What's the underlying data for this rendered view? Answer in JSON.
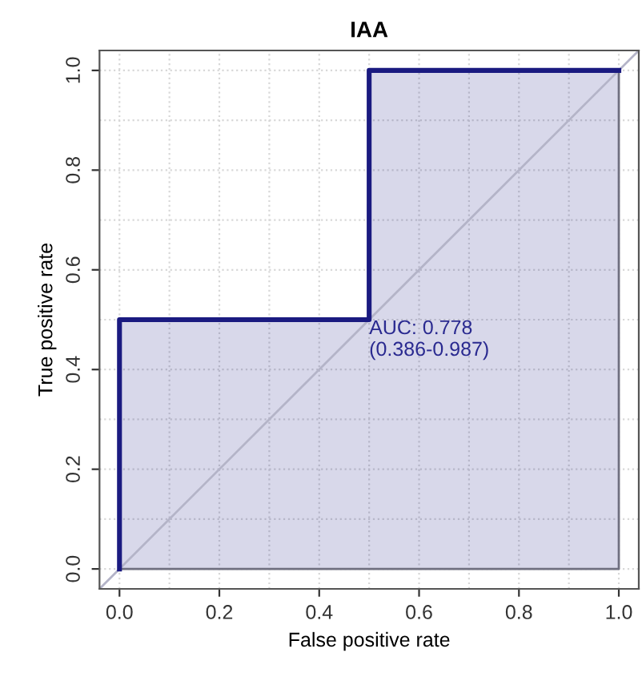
{
  "chart_data": {
    "type": "area",
    "title": "IAA",
    "xlabel": "False positive rate",
    "ylabel": "True positive rate",
    "series": [
      {
        "color": "#1a1a80",
        "x": [
          0,
          0,
          0.5,
          0.5,
          1
        ],
        "values": [
          0,
          0.5,
          0.5,
          1,
          1
        ]
      },
      {
        "type": "line",
        "color": "#b4b4c8",
        "x": [
          -0.04,
          1.04
        ],
        "values": [
          -0.04,
          1.04
        ]
      }
    ],
    "annotations": [
      {
        "text": "AUC: 0.778\n(0.386-0.987)",
        "x": 0.5,
        "y": 0.5
      }
    ],
    "xlim": [
      -0.04,
      1.04
    ],
    "ylim": [
      -0.04,
      1.04
    ],
    "xticks": [
      {
        "value": 0,
        "label": "0.0"
      },
      {
        "value": 0.1,
        "label": null
      },
      0.2,
      {
        "value": 0.3,
        "label": null
      },
      0.4,
      {
        "value": 0.5,
        "label": null
      },
      0.6,
      {
        "value": 0.7,
        "label": null
      },
      0.8,
      {
        "value": 0.9,
        "label": null
      },
      {
        "value": 1,
        "label": "1.0"
      }
    ],
    "yticks": [
      {
        "value": 0,
        "label": "0.0"
      },
      {
        "value": 0.1,
        "label": null
      },
      0.2,
      {
        "value": 0.3,
        "label": null
      },
      0.4,
      {
        "value": 0.5,
        "label": null
      },
      0.6,
      {
        "value": 0.7,
        "label": null
      },
      0.8,
      {
        "value": 0.9,
        "label": null
      },
      {
        "value": 1,
        "label": "1.0"
      }
    ],
    "grid": true,
    "line_style": "solid"
  }
}
